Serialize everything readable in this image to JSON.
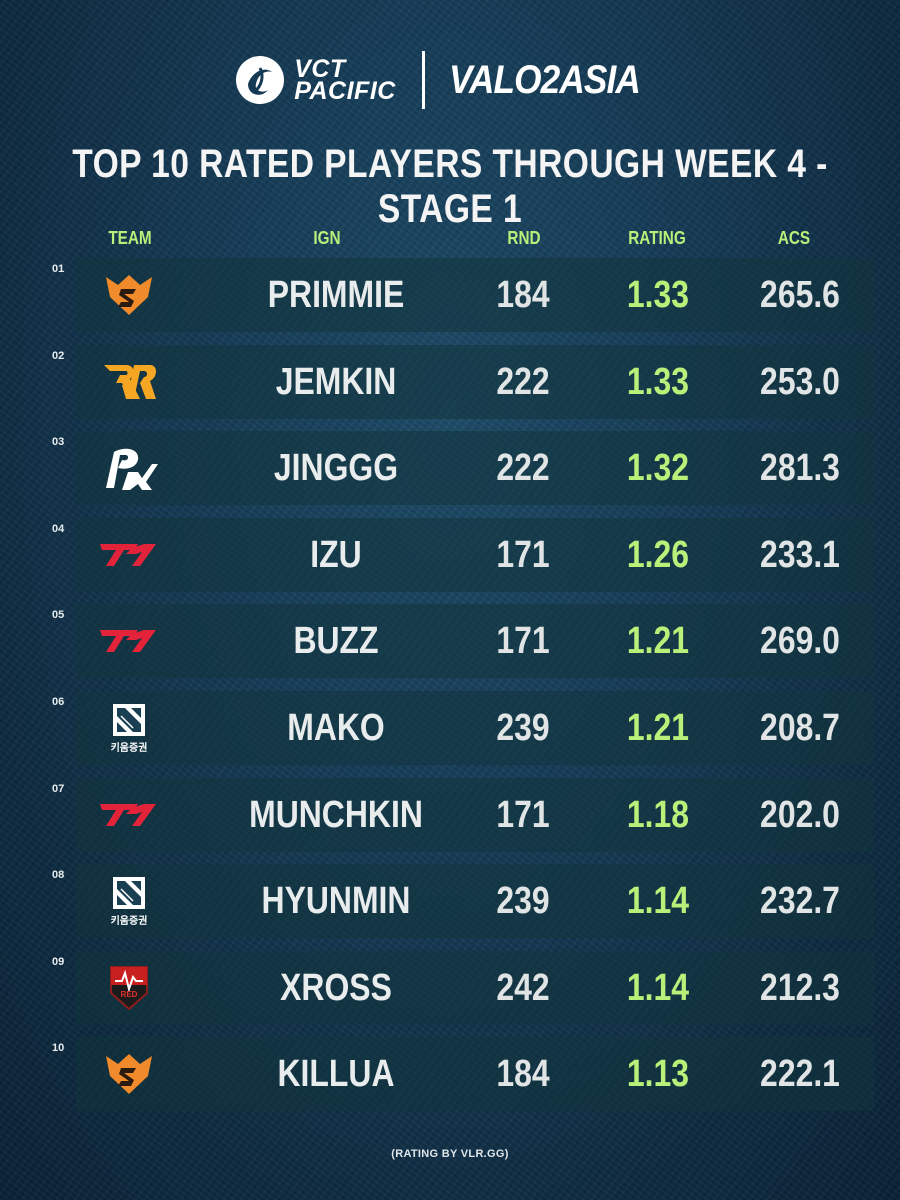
{
  "header": {
    "vct_line1": "VCT",
    "vct_line2": "PACIFIC",
    "partner": "VALO2ASIA"
  },
  "title": "TOP 10 RATED PLAYERS THROUGH WEEK 4 - STAGE 1",
  "columns": {
    "team": "TEAM",
    "ign": "IGN",
    "rnd": "RND",
    "rating": "RATING",
    "acs": "ACS"
  },
  "rows": [
    {
      "num": "01",
      "team_icon": "team-sonic-logo-icon",
      "ign": "PRIMMIE",
      "rnd": "184",
      "rating": "1.33",
      "acs": "265.6"
    },
    {
      "num": "02",
      "team_icon": "team-rrq-logo-icon",
      "ign": "JEMKIN",
      "rnd": "222",
      "rating": "1.33",
      "acs": "253.0"
    },
    {
      "num": "03",
      "team_icon": "team-prx-logo-icon",
      "ign": "JINGGG",
      "rnd": "222",
      "rating": "1.32",
      "acs": "281.3"
    },
    {
      "num": "04",
      "team_icon": "team-t1-logo-icon",
      "ign": "IZU",
      "rnd": "171",
      "rating": "1.26",
      "acs": "233.1"
    },
    {
      "num": "05",
      "team_icon": "team-t1-logo-icon",
      "ign": "BUZZ",
      "rnd": "171",
      "rating": "1.21",
      "acs": "269.0"
    },
    {
      "num": "06",
      "team_icon": "team-kiwoom-logo-icon",
      "ign": "MAKO",
      "rnd": "239",
      "rating": "1.21",
      "acs": "208.7"
    },
    {
      "num": "07",
      "team_icon": "team-t1-logo-icon",
      "ign": "MUNCHKIN",
      "rnd": "171",
      "rating": "1.18",
      "acs": "202.0"
    },
    {
      "num": "08",
      "team_icon": "team-kiwoom-logo-icon",
      "ign": "HYUNMIN",
      "rnd": "239",
      "rating": "1.14",
      "acs": "232.7"
    },
    {
      "num": "09",
      "team_icon": "team-red-logo-icon",
      "ign": "XROSS",
      "rnd": "242",
      "rating": "1.14",
      "acs": "212.3"
    },
    {
      "num": "10",
      "team_icon": "team-sonic-logo-icon",
      "ign": "KILLUA",
      "rnd": "184",
      "rating": "1.13",
      "acs": "222.1"
    }
  ],
  "logo_text": {
    "kiwoom": "키움증권",
    "red": "RED"
  },
  "footer": "(RATING BY VLR.GG)",
  "colors": {
    "accent_green": "#b8f07a",
    "t1_red": "#e3233a",
    "sonic_orange": "#f08a2a",
    "rrq_orange": "#f5a623"
  }
}
